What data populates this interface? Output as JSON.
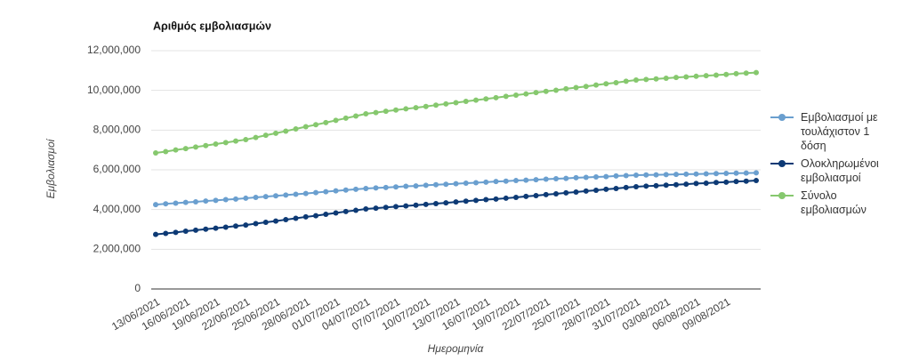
{
  "chart_data": {
    "type": "line",
    "title": "Αριθμός εμβολιασμών",
    "x_label": "Ημερομηνία",
    "y_label": "Εμβολιασμοί",
    "categories": [
      "13/06/2021",
      null,
      null,
      "16/06/2021",
      null,
      null,
      "19/06/2021",
      null,
      null,
      "22/06/2021",
      null,
      null,
      "25/06/2021",
      null,
      null,
      "28/06/2021",
      null,
      null,
      "01/07/2021",
      null,
      null,
      "04/07/2021",
      null,
      null,
      "07/07/2021",
      null,
      null,
      "10/07/2021",
      null,
      null,
      "13/07/2021",
      null,
      null,
      "16/07/2021",
      null,
      null,
      "19/07/2021",
      null,
      null,
      "22/07/2021",
      null,
      null,
      "25/07/2021",
      null,
      null,
      "28/07/2021",
      null,
      null,
      "31/07/2021",
      null,
      null,
      "03/08/2021",
      null,
      null,
      "06/08/2021",
      null,
      null,
      "09/08/2021",
      null,
      null,
      null
    ],
    "series": [
      {
        "name": "Εμβολιασμοί με τουλάχιστον 1 δόση",
        "color": "#6a9fcf",
        "values": [
          4250000,
          4290000,
          4320000,
          4360000,
          4390000,
          4430000,
          4460000,
          4500000,
          4530000,
          4570000,
          4610000,
          4650000,
          4690000,
          4730000,
          4770000,
          4810000,
          4850000,
          4900000,
          4940000,
          4980000,
          5020000,
          5060000,
          5090000,
          5110000,
          5140000,
          5170000,
          5190000,
          5220000,
          5250000,
          5270000,
          5300000,
          5330000,
          5350000,
          5380000,
          5410000,
          5430000,
          5460000,
          5480000,
          5500000,
          5530000,
          5550000,
          5570000,
          5600000,
          5620000,
          5640000,
          5660000,
          5690000,
          5710000,
          5730000,
          5740000,
          5750000,
          5760000,
          5770000,
          5780000,
          5790000,
          5800000,
          5810000,
          5820000,
          5830000,
          5840000,
          5850000
        ]
      },
      {
        "name": "Ολοκληρωμένοι εμβολιασμοί",
        "color": "#0d3a75",
        "values": [
          2750000,
          2800000,
          2850000,
          2910000,
          2960000,
          3010000,
          3060000,
          3110000,
          3170000,
          3220000,
          3290000,
          3360000,
          3420000,
          3490000,
          3560000,
          3630000,
          3690000,
          3760000,
          3830000,
          3900000,
          3960000,
          4030000,
          4070000,
          4110000,
          4150000,
          4180000,
          4220000,
          4260000,
          4300000,
          4340000,
          4380000,
          4420000,
          4460000,
          4500000,
          4530000,
          4570000,
          4610000,
          4660000,
          4700000,
          4750000,
          4790000,
          4840000,
          4880000,
          4930000,
          4970000,
          5020000,
          5060000,
          5110000,
          5150000,
          5180000,
          5200000,
          5230000,
          5250000,
          5280000,
          5310000,
          5330000,
          5360000,
          5380000,
          5410000,
          5430000,
          5460000
        ]
      },
      {
        "name": "Σύνολο εμβολιασμών",
        "color": "#86c86e",
        "values": [
          6850000,
          6920000,
          7000000,
          7070000,
          7150000,
          7220000,
          7300000,
          7370000,
          7450000,
          7520000,
          7630000,
          7740000,
          7840000,
          7950000,
          8060000,
          8170000,
          8270000,
          8380000,
          8490000,
          8600000,
          8710000,
          8820000,
          8880000,
          8950000,
          9010000,
          9070000,
          9130000,
          9190000,
          9260000,
          9320000,
          9380000,
          9450000,
          9510000,
          9570000,
          9630000,
          9700000,
          9760000,
          9820000,
          9890000,
          9950000,
          10010000,
          10080000,
          10140000,
          10200000,
          10270000,
          10330000,
          10390000,
          10460000,
          10520000,
          10550000,
          10580000,
          10610000,
          10650000,
          10680000,
          10710000,
          10740000,
          10770000,
          10800000,
          10840000,
          10870000,
          10900000
        ]
      }
    ],
    "ylim": [
      0,
      12000000
    ],
    "yticks": [
      0,
      {
        "value": 2000000,
        "label": "2,000,000"
      },
      {
        "value": 4000000,
        "label": "4,000,000"
      },
      {
        "value": 6000000,
        "label": "6,000,000"
      },
      {
        "value": 8000000,
        "label": "8,000,000"
      },
      {
        "value": 10000000,
        "label": "10,000,000"
      },
      {
        "value": 12000000,
        "label": "12,000,000"
      }
    ],
    "grid": true,
    "legend": "right"
  }
}
